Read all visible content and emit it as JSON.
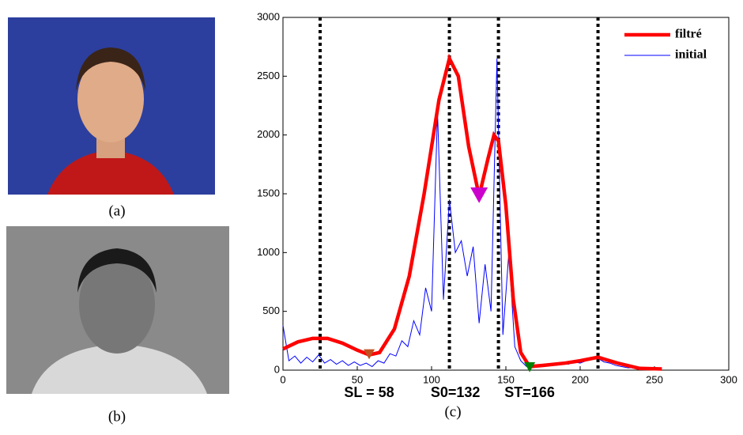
{
  "captions": [
    "(a)",
    "(b)",
    "(c)"
  ],
  "chart_data": {
    "type": "line",
    "xlim": [
      0,
      300
    ],
    "xticks": [
      0,
      50,
      100,
      150,
      200,
      250,
      300
    ],
    "ylim": [
      0,
      3000
    ],
    "yticks": [
      0,
      500,
      1000,
      1500,
      2000,
      2500,
      3000
    ],
    "legend": "upper right",
    "series": [
      {
        "name": "filtré",
        "color": "#ff0000",
        "x": [
          0,
          10,
          20,
          30,
          40,
          50,
          58,
          65,
          75,
          85,
          95,
          105,
          112,
          118,
          125,
          132,
          138,
          142,
          145,
          150,
          155,
          160,
          166,
          175,
          190,
          200,
          212,
          225,
          240,
          255
        ],
        "values": [
          180,
          240,
          270,
          270,
          230,
          170,
          130,
          150,
          350,
          800,
          1500,
          2300,
          2650,
          2500,
          1900,
          1480,
          1800,
          2000,
          1950,
          1400,
          600,
          150,
          30,
          40,
          60,
          80,
          110,
          60,
          15,
          10
        ]
      },
      {
        "name": "initial",
        "color": "#0000ff",
        "x": [
          0,
          4,
          8,
          12,
          16,
          20,
          24,
          28,
          32,
          36,
          40,
          44,
          48,
          52,
          56,
          60,
          64,
          68,
          72,
          76,
          80,
          84,
          88,
          92,
          96,
          100,
          104,
          108,
          112,
          116,
          120,
          124,
          128,
          132,
          136,
          140,
          144,
          148,
          152,
          156,
          160,
          164,
          168,
          172,
          176,
          180,
          184,
          188,
          192,
          196,
          200,
          204,
          208,
          212,
          216,
          220,
          224,
          228,
          232,
          236,
          240,
          244,
          248,
          252
        ],
        "values": [
          380,
          80,
          120,
          60,
          110,
          70,
          130,
          60,
          90,
          50,
          80,
          40,
          70,
          40,
          60,
          30,
          80,
          60,
          140,
          120,
          250,
          200,
          420,
          300,
          700,
          500,
          2200,
          600,
          1450,
          1000,
          1100,
          800,
          1050,
          400,
          900,
          500,
          2650,
          300,
          1000,
          200,
          80,
          30,
          20,
          40,
          30,
          50,
          40,
          60,
          50,
          70,
          60,
          80,
          90,
          100,
          70,
          60,
          40,
          30,
          20,
          20,
          15,
          10,
          10,
          5
        ]
      }
    ],
    "vlines": [
      25,
      112,
      145,
      212
    ],
    "markers": [
      {
        "x": 58,
        "y": 130,
        "color": "#c0501f",
        "label": "SL = 58"
      },
      {
        "x": 132,
        "y": 1480,
        "color": "#cc00cc",
        "label": "S0=132"
      },
      {
        "x": 166,
        "y": 20,
        "color": "#008000",
        "label": "ST=166"
      }
    ]
  }
}
